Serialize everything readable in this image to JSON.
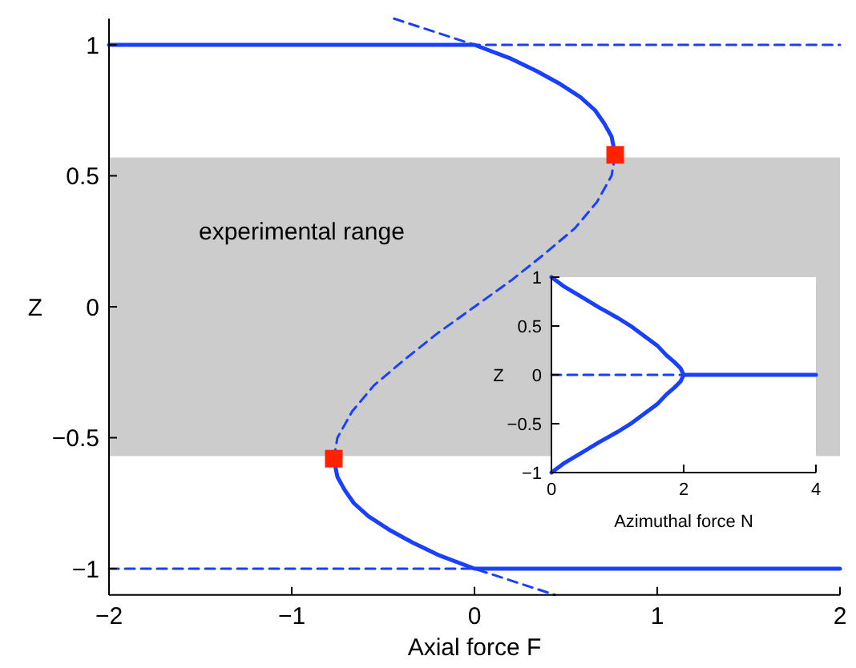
{
  "chart_data": [
    {
      "type": "line",
      "xlabel": "Axial force F",
      "ylabel": "Z",
      "xlim": [
        -2,
        2
      ],
      "xticks": [
        -2,
        -1,
        0,
        1,
        2
      ],
      "ylim": [
        -1.1,
        1.1
      ],
      "yticks": [
        -1,
        -0.5,
        0,
        0.5,
        1
      ],
      "bands": [
        {
          "axis": "y",
          "from": -0.57,
          "to": 0.57,
          "label": "experimental range",
          "color": "#cccccc"
        }
      ],
      "series": [
        {
          "color": "#1a40ff",
          "line_style": "solid",
          "x": [
            -2,
            0,
            0.19,
            0.34,
            0.47,
            0.58,
            0.66,
            0.71,
            0.75,
            0.77
          ],
          "values": [
            1,
            1,
            0.95,
            0.9,
            0.85,
            0.8,
            0.75,
            0.7,
            0.65,
            0.58
          ]
        },
        {
          "color": "#1a40ff",
          "line_style": "dashed",
          "x": [
            0.77,
            0.75,
            0.67,
            0.55,
            0.38,
            0.2,
            0,
            -0.2,
            -0.38,
            -0.55,
            -0.67,
            -0.75,
            -0.77
          ],
          "values": [
            0.58,
            0.5,
            0.4,
            0.3,
            0.2,
            0.1,
            0,
            -0.1,
            -0.2,
            -0.3,
            -0.4,
            -0.5,
            -0.58
          ]
        },
        {
          "color": "#1a40ff",
          "line_style": "solid",
          "x": [
            -0.77,
            -0.75,
            -0.71,
            -0.66,
            -0.58,
            -0.47,
            -0.34,
            -0.19,
            0,
            2
          ],
          "values": [
            -0.58,
            -0.65,
            -0.7,
            -0.75,
            -0.8,
            -0.85,
            -0.9,
            -0.95,
            -1,
            -1
          ]
        },
        {
          "color": "#1a40ff",
          "line_style": "dashed",
          "x": [
            -0.44,
            -0.22,
            0,
            2
          ],
          "values": [
            1.1,
            1.05,
            1,
            1
          ]
        },
        {
          "color": "#1a40ff",
          "line_style": "dashed",
          "x": [
            -2,
            0,
            0.22,
            0.44
          ],
          "values": [
            -1,
            -1,
            -1.05,
            -1.1
          ]
        },
        {
          "type": "scatter",
          "color": "#ff2200",
          "marker": "square",
          "x": [
            0.77,
            -0.77
          ],
          "values": [
            0.58,
            -0.58
          ]
        }
      ]
    },
    {
      "type": "line",
      "xlabel": "Azimuthal force N",
      "ylabel": "Z",
      "xlim": [
        0,
        4
      ],
      "xticks": [
        0,
        2,
        4
      ],
      "ylim": [
        -1,
        1
      ],
      "yticks": [
        -1,
        -0.5,
        0,
        0.5,
        1
      ],
      "series": [
        {
          "color": "#1a40ff",
          "line_style": "solid",
          "x": [
            0,
            0.2,
            0.45,
            0.72,
            1.01,
            1.22,
            1.42,
            1.6,
            1.74,
            1.86,
            1.95,
            2,
            1.95,
            1.86,
            1.74,
            1.6,
            1.42,
            1.22,
            1.01,
            0.72,
            0.45,
            0.2,
            0
          ],
          "values": [
            1,
            0.9,
            0.8,
            0.69,
            0.58,
            0.49,
            0.39,
            0.3,
            0.2,
            0.13,
            0.07,
            0,
            -0.07,
            -0.13,
            -0.2,
            -0.3,
            -0.39,
            -0.49,
            -0.58,
            -0.69,
            -0.8,
            -0.9,
            -1
          ]
        },
        {
          "color": "#1a40ff",
          "line_style": "solid",
          "x": [
            2,
            4
          ],
          "values": [
            0,
            0
          ]
        },
        {
          "color": "#1a40ff",
          "line_style": "dashed",
          "x": [
            0,
            2
          ],
          "values": [
            0,
            0
          ]
        }
      ]
    }
  ]
}
